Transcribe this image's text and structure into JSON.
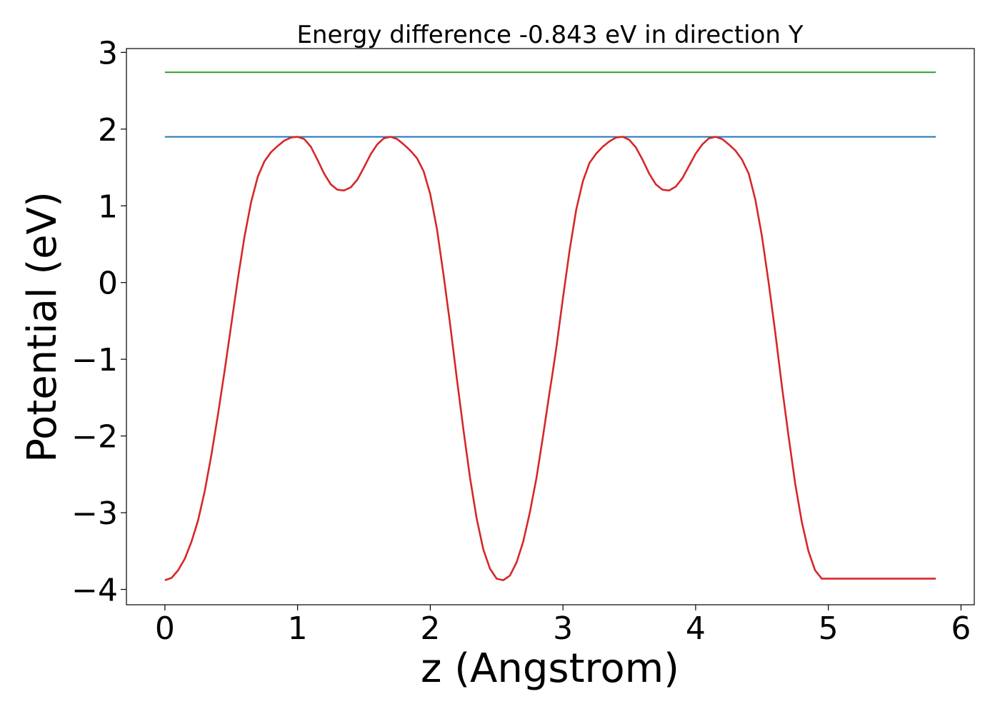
{
  "chart_data": {
    "type": "line",
    "title": "Energy difference -0.843 eV in direction Y",
    "xlabel": "z (Angstrom)",
    "ylabel": "Potential (eV)",
    "xlim": [
      -0.29,
      6.1
    ],
    "ylim": [
      -4.2,
      3.05
    ],
    "xticks": [
      0,
      1,
      2,
      3,
      4,
      5,
      6
    ],
    "xtick_labels": [
      "0",
      "1",
      "2",
      "3",
      "4",
      "5",
      "6"
    ],
    "yticks": [
      -4,
      -3,
      -2,
      -1,
      0,
      1,
      2,
      3
    ],
    "ytick_labels": [
      "−4",
      "−3",
      "−2",
      "−1",
      "0",
      "1",
      "2",
      "3"
    ],
    "grid": false,
    "series": [
      {
        "color": "#2ca02c",
        "x": [
          0,
          5.81
        ],
        "y": [
          2.74,
          2.74
        ]
      },
      {
        "color": "#1f77b4",
        "x": [
          0,
          5.81
        ],
        "y": [
          1.9,
          1.9
        ]
      },
      {
        "color": "#d62728",
        "x": [
          0,
          0.05,
          0.1,
          0.15,
          0.2,
          0.25,
          0.3,
          0.35,
          0.4,
          0.45,
          0.5,
          0.55,
          0.6,
          0.65,
          0.7,
          0.75,
          0.8,
          0.85,
          0.9,
          0.95,
          1.0,
          1.05,
          1.1,
          1.15,
          1.2,
          1.25,
          1.3,
          1.35,
          1.4,
          1.45,
          1.5,
          1.55,
          1.6,
          1.65,
          1.7,
          1.75,
          1.8,
          1.85,
          1.9,
          1.95,
          2.0,
          2.05,
          2.1,
          2.15,
          2.2,
          2.25,
          2.3,
          2.35,
          2.4,
          2.45,
          2.5,
          2.55,
          2.6,
          2.65,
          2.7,
          2.75,
          2.8,
          2.85,
          2.9,
          2.92,
          2.95,
          3.0,
          3.05,
          3.1,
          3.15,
          3.2,
          3.25,
          3.3,
          3.35,
          3.4,
          3.45,
          3.5,
          3.55,
          3.6,
          3.65,
          3.7,
          3.75,
          3.8,
          3.85,
          3.9,
          3.95,
          4.0,
          4.05,
          4.1,
          4.15,
          4.2,
          4.25,
          4.3,
          4.35,
          4.4,
          4.45,
          4.5,
          4.55,
          4.6,
          4.65,
          4.7,
          4.75,
          4.8,
          4.85,
          4.9,
          4.95,
          5.0,
          5.05,
          5.1,
          5.15,
          5.2,
          5.25,
          5.3,
          5.35,
          5.4,
          5.45,
          5.5,
          5.55,
          5.6,
          5.65,
          5.7,
          5.75,
          5.81
        ],
        "y": [
          -3.88,
          -3.85,
          -3.75,
          -3.6,
          -3.38,
          -3.1,
          -2.72,
          -2.25,
          -1.72,
          -1.15,
          -0.55,
          0.05,
          0.6,
          1.05,
          1.38,
          1.58,
          1.7,
          1.78,
          1.85,
          1.89,
          1.9,
          1.87,
          1.77,
          1.6,
          1.42,
          1.28,
          1.21,
          1.2,
          1.24,
          1.34,
          1.5,
          1.67,
          1.8,
          1.88,
          1.9,
          1.87,
          1.8,
          1.72,
          1.62,
          1.45,
          1.15,
          0.7,
          0.1,
          -0.55,
          -1.25,
          -1.92,
          -2.55,
          -3.08,
          -3.48,
          -3.73,
          -3.86,
          -3.88,
          -3.82,
          -3.65,
          -3.38,
          -3.0,
          -2.55,
          -2.0,
          -1.42,
          -1.2,
          -0.85,
          -0.2,
          0.42,
          0.95,
          1.32,
          1.56,
          1.68,
          1.77,
          1.84,
          1.89,
          1.9,
          1.86,
          1.76,
          1.6,
          1.42,
          1.28,
          1.21,
          1.2,
          1.25,
          1.36,
          1.52,
          1.68,
          1.8,
          1.88,
          1.9,
          1.87,
          1.8,
          1.72,
          1.6,
          1.42,
          1.08,
          0.6,
          0.0,
          -0.65,
          -1.35,
          -2.0,
          -2.62,
          -3.12,
          -3.5,
          -3.75,
          -3.86,
          -3.86,
          -3.86,
          -3.86,
          -3.86,
          -3.86,
          -3.86,
          -3.86,
          -3.86,
          -3.86,
          -3.86,
          -3.86,
          -3.86,
          -3.86,
          -3.86,
          -3.86,
          -3.86,
          -3.86
        ]
      }
    ]
  }
}
